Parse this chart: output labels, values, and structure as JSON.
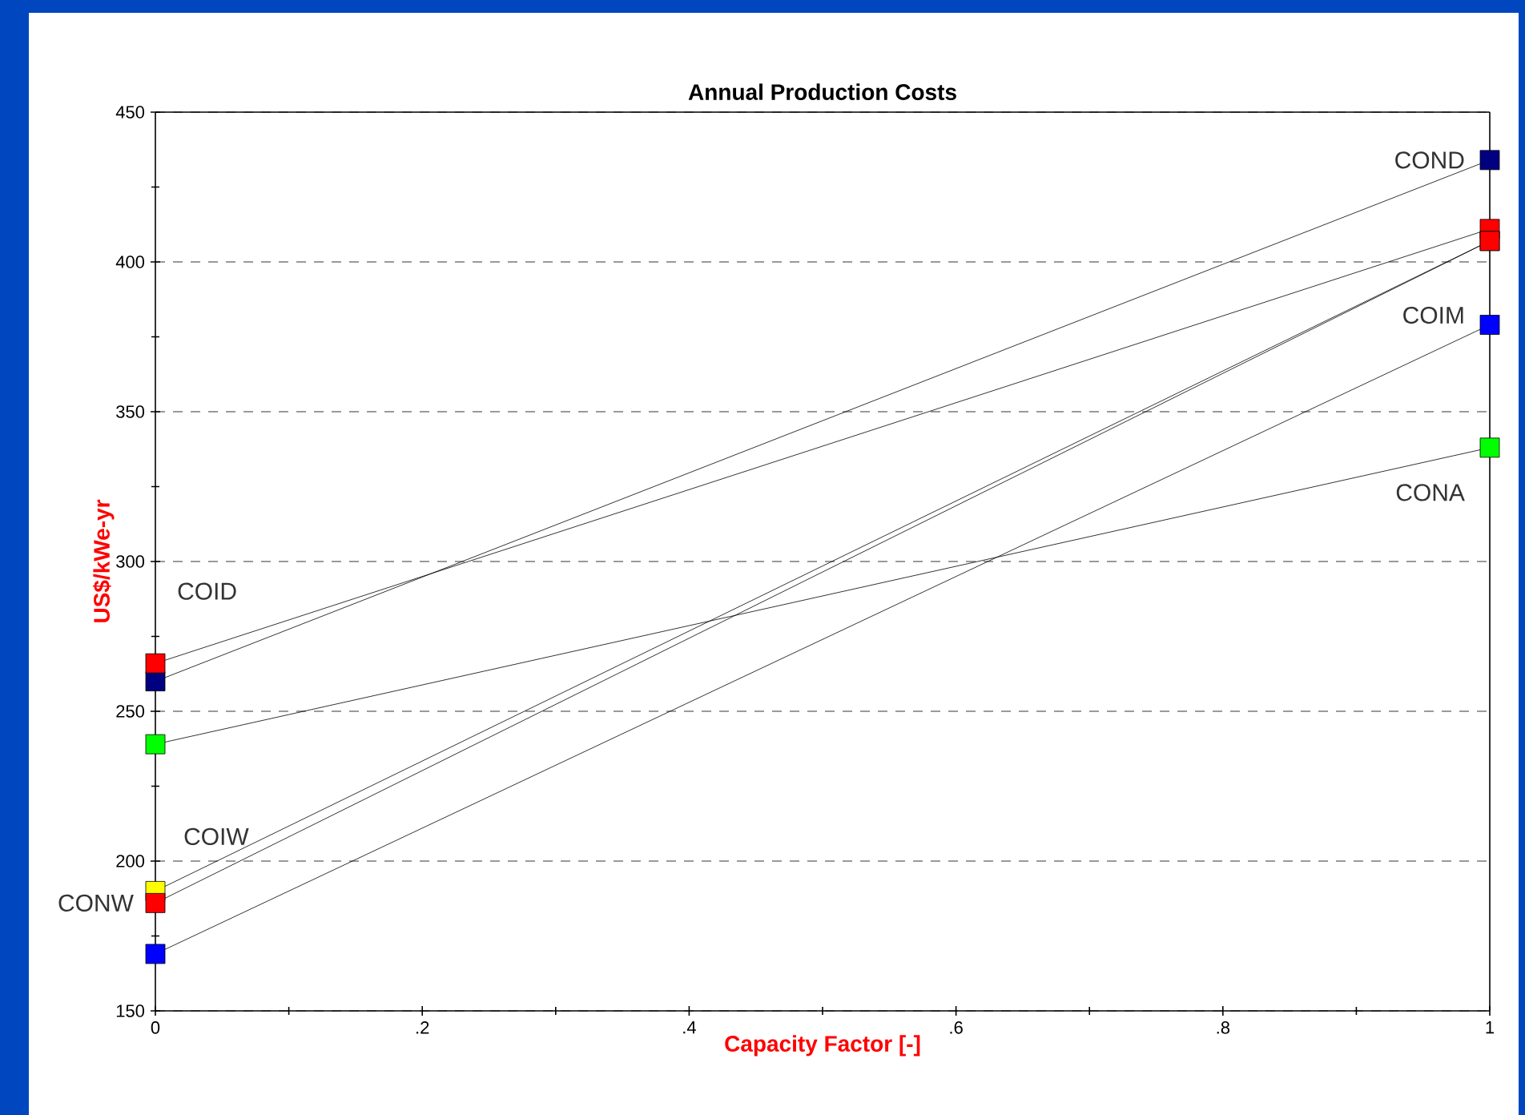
{
  "chart_data": {
    "type": "line",
    "title": "Annual Production Costs",
    "xlabel": "Capacity Factor [-]",
    "ylabel": "US$/kWe-yr",
    "x": [
      0,
      1
    ],
    "series": [
      {
        "name": "COND",
        "color": "#000080",
        "values": [
          260,
          434
        ]
      },
      {
        "name": "COID",
        "color": "#ff0000",
        "values": [
          266,
          411
        ]
      },
      {
        "name": "CONA",
        "color": "#00ff00",
        "values": [
          239,
          338
        ]
      },
      {
        "name": "COIW",
        "color": "#ffff00",
        "values": [
          190,
          407
        ]
      },
      {
        "name": "CONW",
        "color": "#ff0000",
        "values": [
          186,
          407
        ]
      },
      {
        "name": "COIM",
        "color": "#0000ff",
        "values": [
          169,
          379
        ]
      }
    ],
    "xlim": [
      0,
      1
    ],
    "ylim": [
      150,
      450
    ],
    "xticks": [
      0,
      {
        "value": 0.2,
        "label": ".2"
      },
      {
        "value": 0.4,
        "label": ".4"
      },
      {
        "value": 0.6,
        "label": ".6"
      },
      {
        "value": 0.8,
        "label": ".8"
      },
      1
    ],
    "yticks": [
      150,
      200,
      250,
      300,
      350,
      400,
      450
    ],
    "grid": "y",
    "marker": "square",
    "line_style": "solid"
  }
}
